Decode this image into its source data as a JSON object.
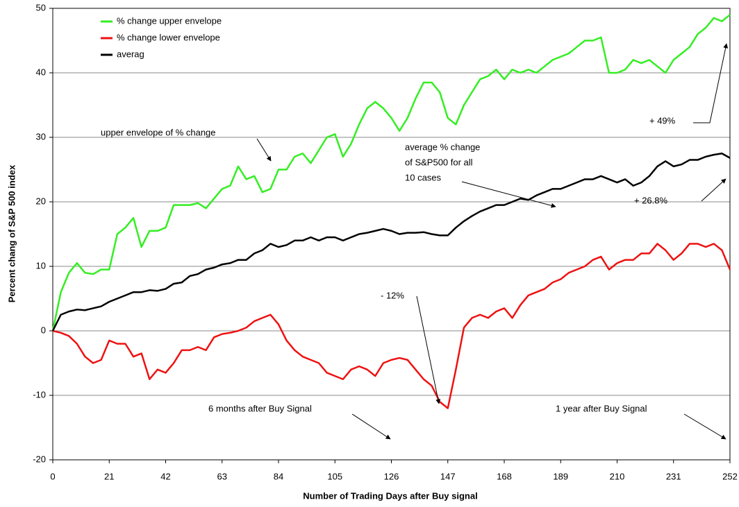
{
  "chart_data": {
    "type": "line",
    "xlabel": "Number of Trading Days after Buy signal",
    "ylabel": "Percent chang of S&P 500 index",
    "x": [
      0,
      3,
      6,
      9,
      12,
      15,
      18,
      21,
      24,
      27,
      30,
      33,
      36,
      39,
      42,
      45,
      48,
      51,
      54,
      57,
      60,
      63,
      66,
      69,
      72,
      75,
      78,
      81,
      84,
      87,
      90,
      93,
      96,
      99,
      102,
      105,
      108,
      111,
      114,
      117,
      120,
      123,
      126,
      129,
      132,
      135,
      138,
      141,
      144,
      147,
      150,
      153,
      156,
      159,
      162,
      165,
      168,
      171,
      174,
      177,
      180,
      183,
      186,
      189,
      192,
      195,
      198,
      201,
      204,
      207,
      210,
      213,
      216,
      219,
      222,
      225,
      228,
      231,
      234,
      237,
      240,
      243,
      246,
      249,
      252
    ],
    "series": [
      {
        "name": "% change upper envelope",
        "color": "#33ee22",
        "values": [
          0,
          6,
          9,
          10.5,
          9,
          8.8,
          9.5,
          9.5,
          15,
          16,
          17.5,
          13,
          15.5,
          15.5,
          16,
          19.5,
          19.5,
          19.5,
          19.8,
          19,
          20.5,
          22,
          22.5,
          25.5,
          23.5,
          24,
          21.5,
          22,
          25,
          25,
          27,
          27.5,
          26,
          28,
          30,
          30.5,
          27,
          29,
          32,
          34.5,
          35.5,
          34.5,
          33,
          31,
          33,
          36,
          38.5,
          38.5,
          37,
          33,
          32,
          35,
          37,
          39,
          39.5,
          40.5,
          39,
          40.5,
          40,
          40.5,
          40,
          41,
          42,
          42.5,
          43,
          44,
          45,
          45,
          45.5,
          40,
          40,
          40.5,
          42,
          41.5,
          42,
          41,
          40,
          42,
          43,
          44,
          46,
          47,
          48.5,
          48,
          49
        ]
      },
      {
        "name": "% change lower envelope",
        "color": "#ee1111",
        "values": [
          0,
          -0.3,
          -0.8,
          -2,
          -4,
          -5,
          -4.5,
          -1.5,
          -2,
          -2,
          -4,
          -3.5,
          -7.5,
          -6,
          -6.5,
          -5,
          -3,
          -3,
          -2.5,
          -3,
          -1,
          -0.5,
          -0.3,
          0,
          0.5,
          1.5,
          2,
          2.5,
          1,
          -1.5,
          -3,
          -4,
          -4.5,
          -5,
          -6.5,
          -7,
          -7.5,
          -6,
          -5.5,
          -6,
          -7,
          -5,
          -4.5,
          -4.2,
          -4.5,
          -6,
          -7.5,
          -8.5,
          -11,
          -12,
          -6,
          0.5,
          2,
          2.5,
          2,
          3,
          3.5,
          2,
          4,
          5.5,
          6,
          6.5,
          7.5,
          8,
          9,
          9.5,
          10,
          11,
          11.5,
          9.5,
          10.5,
          11,
          11,
          12,
          12,
          13.5,
          12.5,
          11,
          12,
          13.5,
          13.5,
          13,
          13.5,
          12.5,
          9.5
        ]
      },
      {
        "name": "averag",
        "color": "#000000",
        "values": [
          0,
          2.5,
          3,
          3.3,
          3.2,
          3.5,
          3.8,
          4.5,
          5,
          5.5,
          6,
          6,
          6.3,
          6.2,
          6.5,
          7.3,
          7.5,
          8.5,
          8.8,
          9.5,
          9.8,
          10.3,
          10.5,
          11,
          11,
          12,
          12.5,
          13.5,
          13,
          13.3,
          14,
          14,
          14.5,
          14,
          14.5,
          14.5,
          14,
          14.5,
          15,
          15.2,
          15.5,
          15.8,
          15.5,
          15,
          15.2,
          15.2,
          15.3,
          15,
          14.8,
          14.8,
          16,
          17,
          17.8,
          18.5,
          19,
          19.5,
          19.5,
          20,
          20.5,
          20.3,
          21,
          21.5,
          22,
          22,
          22.5,
          23,
          23.5,
          23.5,
          24,
          23.5,
          23,
          23.5,
          22.5,
          23,
          24,
          25.5,
          26.3,
          25.5,
          25.8,
          26.5,
          26.5,
          27,
          27.3,
          27.5,
          26.8
        ]
      }
    ],
    "xlim": [
      0,
      252
    ],
    "xticks": [
      0,
      21,
      42,
      63,
      84,
      105,
      126,
      147,
      168,
      189,
      210,
      231,
      252
    ],
    "ylim": [
      -20,
      50
    ],
    "yticks": [
      -20,
      -10,
      0,
      10,
      20,
      30,
      40,
      50
    ],
    "grid": true,
    "legend": "upper left",
    "annotations": [
      "upper envelope of % change",
      "average % change",
      "of S&P500 for all",
      "10 cases",
      "+ 49%",
      "+ 26.8%",
      "- 12%",
      "6 months after Buy Signal",
      "1 year after Buy Signal"
    ]
  }
}
